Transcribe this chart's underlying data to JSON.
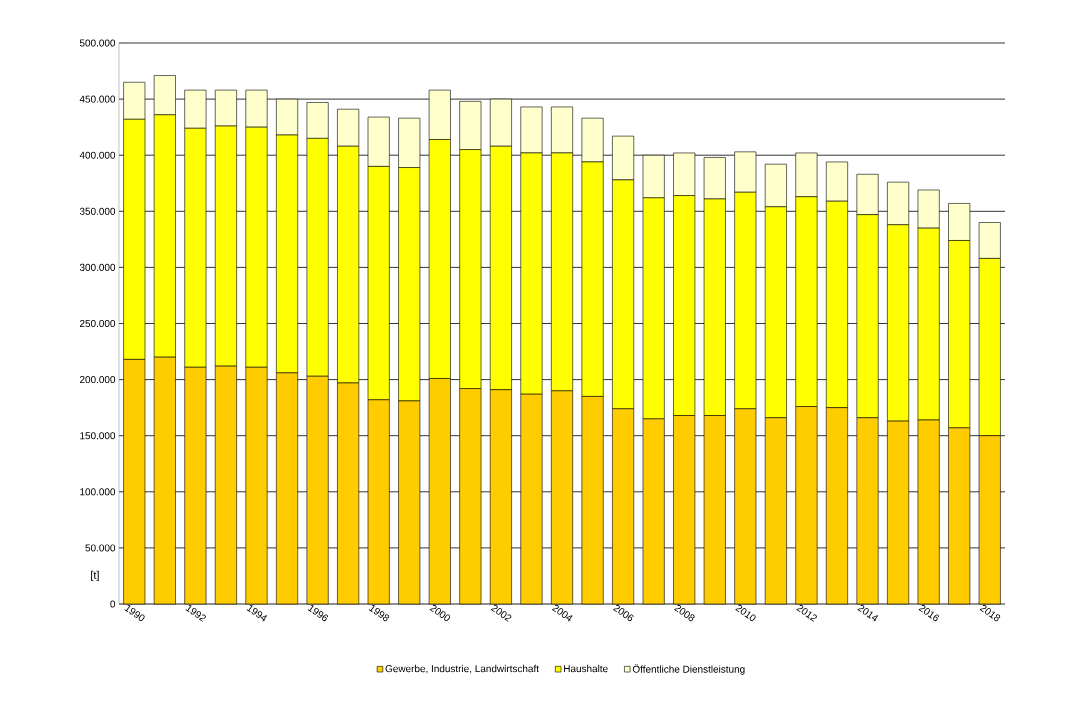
{
  "chart_data": {
    "type": "bar",
    "stacked": true,
    "ylabel": "[t]",
    "categories": [
      "1990",
      null,
      "1992",
      null,
      "1994",
      null,
      "1996",
      null,
      "1998",
      null,
      "2000",
      null,
      "2002",
      null,
      "2004",
      null,
      "2006",
      null,
      "2008",
      null,
      "2010",
      null,
      "2012",
      null,
      "2014",
      null,
      "2016",
      null,
      "2018"
    ],
    "series": [
      {
        "name": "Gewerbe, Industrie, Landwirtschaft",
        "color": "#ffcc00",
        "values": [
          218000,
          220000,
          211000,
          212000,
          211000,
          206000,
          203000,
          197000,
          182000,
          181000,
          201000,
          192000,
          191000,
          187000,
          190000,
          185000,
          174000,
          165000,
          168000,
          168000,
          174000,
          166000,
          176000,
          175000,
          166000,
          163000,
          164000,
          157000,
          150000
        ]
      },
      {
        "name": "Haushalte",
        "color": "#ffff00",
        "values": [
          214000,
          216000,
          213000,
          214000,
          214000,
          212000,
          212000,
          211000,
          208000,
          208000,
          213000,
          213000,
          217000,
          215000,
          212000,
          209000,
          204000,
          197000,
          196000,
          193000,
          193000,
          188000,
          187000,
          184000,
          181000,
          175000,
          171000,
          167000,
          158000
        ]
      },
      {
        "name": "Öffentliche Dienstleistung",
        "color": "#ffffcc",
        "values": [
          33000,
          35000,
          34000,
          32000,
          33000,
          32000,
          32000,
          33000,
          44000,
          44000,
          44000,
          43000,
          42000,
          41000,
          41000,
          39000,
          39000,
          38000,
          38000,
          37000,
          36000,
          38000,
          39000,
          35000,
          36000,
          38000,
          34000,
          33000,
          32000
        ]
      }
    ],
    "ylim": [
      0,
      500000
    ],
    "yticks": [
      0,
      {
        "value": 50000,
        "label": "50.000"
      },
      {
        "value": 100000,
        "label": "100.000"
      },
      {
        "value": 150000,
        "label": "150.000"
      },
      {
        "value": 200000,
        "label": "200.000"
      },
      {
        "value": 250000,
        "label": "250.000"
      },
      {
        "value": 300000,
        "label": "300.000"
      },
      {
        "value": 350000,
        "label": "350.000"
      },
      {
        "value": 400000,
        "label": "400.000"
      },
      {
        "value": 450000,
        "label": "450.000"
      },
      {
        "value": 500000,
        "label": "500.000"
      }
    ],
    "grid": "y",
    "legend": "bottom"
  }
}
